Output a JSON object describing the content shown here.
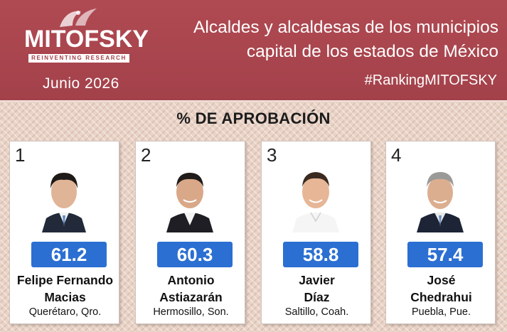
{
  "header": {
    "brand": "MITOFSKY",
    "tagline": "REINVENTING RESEARCH",
    "date": "Junio  2026",
    "title_line1": "Alcaldes y alcaldesas de los municipios",
    "title_line2": "capital de los estados de México",
    "hashtag": "#RankingMITOFSKY"
  },
  "section_title": "% DE APROBACIÓN",
  "colors": {
    "header_bg": "#a3414a",
    "score_bg": "#2b6fd2"
  },
  "candidates": [
    {
      "rank": "1",
      "score": "61.2",
      "name_line1": "Felipe Fernando",
      "name_line2": "Macias",
      "city": "Querétaro, Qro."
    },
    {
      "rank": "2",
      "score": "60.3",
      "name_line1": "Antonio",
      "name_line2": "Astiazarán",
      "city": "Hermosillo, Son."
    },
    {
      "rank": "3",
      "score": "58.8",
      "name_line1": "Javier",
      "name_line2": "Díaz",
      "city": "Saltillo, Coah."
    },
    {
      "rank": "4",
      "score": "57.4",
      "name_line1": "José",
      "name_line2": "Chedrahui",
      "city": "Puebla, Pue."
    }
  ]
}
